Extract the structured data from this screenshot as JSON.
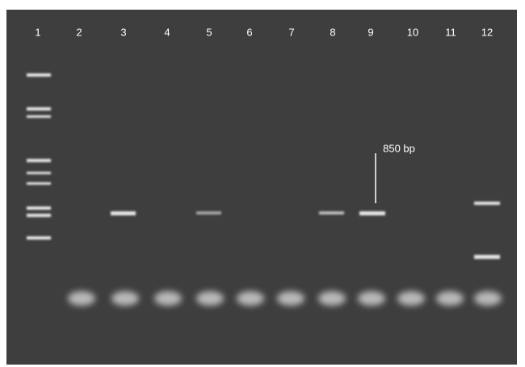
{
  "lanes": [
    "1",
    "2",
    "3",
    "4",
    "5",
    "6",
    "7",
    "8",
    "9",
    "10",
    "11",
    "12"
  ],
  "annotation": "850 bp"
}
